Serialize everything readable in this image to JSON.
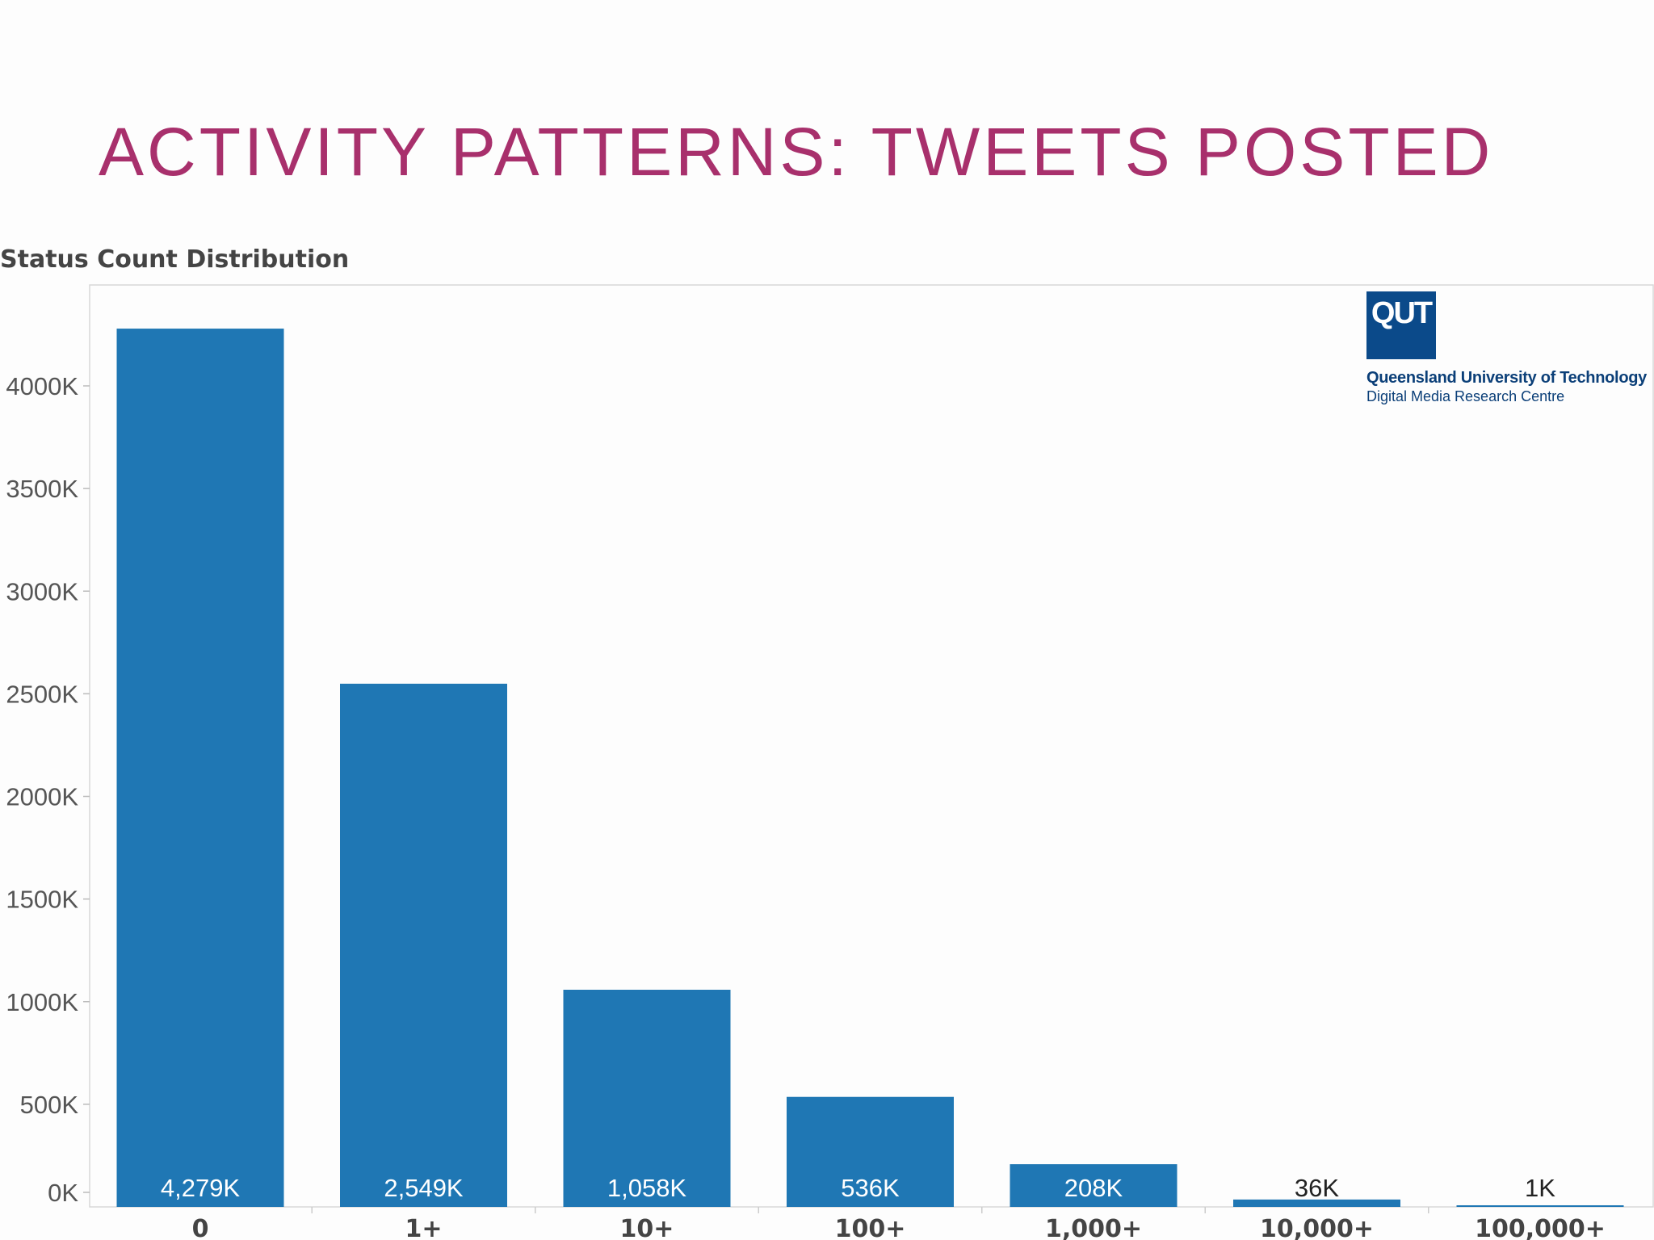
{
  "slide": {
    "title": "ACTIVITY PATTERNS: TWEETS POSTED"
  },
  "logo": {
    "mark": "QUT",
    "line1": "Queensland University of Technology",
    "line2": "Digital Media Research Centre",
    "color": "#0b4a8a"
  },
  "chart_data": {
    "type": "bar",
    "title": "Status Count Distribution",
    "xlabel": "",
    "ylabel": "",
    "categories": [
      "0",
      "1+",
      "10+",
      "100+",
      "1,000+",
      "10,000+",
      "100,000+"
    ],
    "values": [
      4279,
      2549,
      1058,
      536,
      208,
      36,
      1
    ],
    "value_labels": [
      "4,279K",
      "2,549K",
      "1,058K",
      "536K",
      "208K",
      "36K",
      "1K"
    ],
    "y_ticks": [
      0,
      500,
      1000,
      1500,
      2000,
      2500,
      3000,
      3500,
      4000
    ],
    "y_tick_labels": [
      "0K",
      "500K",
      "1000K",
      "1500K",
      "2000K",
      "2500K",
      "3000K",
      "3500K",
      "4000K"
    ],
    "ylim": [
      0,
      4500
    ],
    "bar_color": "#1f77b4",
    "grid": false,
    "legend": "none"
  }
}
